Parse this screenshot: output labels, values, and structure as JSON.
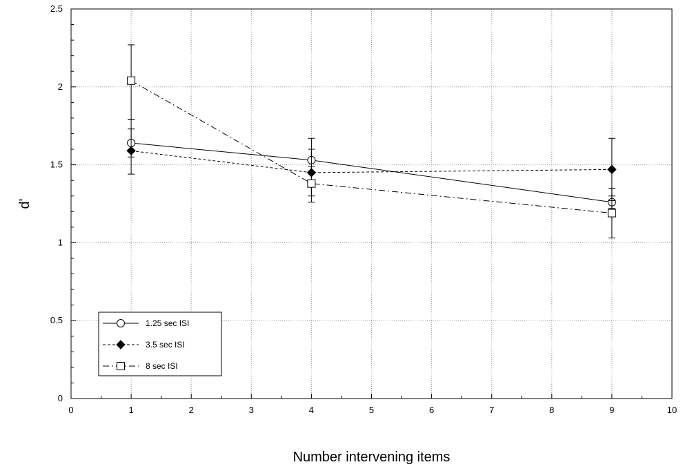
{
  "chart_data": {
    "type": "line",
    "title": "",
    "xlabel": "Number intervening items",
    "ylabel": "d'",
    "xlim": [
      0,
      10
    ],
    "ylim": [
      0,
      2.5
    ],
    "x_ticks": [
      "0",
      "1",
      "2",
      "3",
      "4",
      "5",
      "6",
      "7",
      "8",
      "9",
      "10"
    ],
    "y_ticks": [
      "0",
      "0.5",
      "1",
      "1.5",
      "2",
      "2.5"
    ],
    "grid": "dotted",
    "legend_position": "bottom-left",
    "x": [
      1,
      4,
      9
    ],
    "series": [
      {
        "name": "1.25 sec ISI",
        "marker": "open-circle",
        "line_style": "solid",
        "values": [
          1.64,
          1.53,
          1.26
        ],
        "err_upper": [
          1.73,
          1.67,
          1.3
        ],
        "err_lower": [
          1.55,
          1.39,
          1.22
        ]
      },
      {
        "name": "3.5 sec ISI",
        "marker": "filled-diamond",
        "line_style": "dashed",
        "values": [
          1.59,
          1.45,
          1.47
        ],
        "err_upper": [
          1.79,
          1.6,
          1.67
        ],
        "err_lower": [
          1.44,
          1.3,
          1.27
        ]
      },
      {
        "name": "8 sec ISI",
        "marker": "open-square",
        "line_style": "dash-dot",
        "values": [
          2.04,
          1.38,
          1.19
        ],
        "err_upper": [
          2.27,
          1.49,
          1.35
        ],
        "err_lower": [
          1.79,
          1.26,
          1.03
        ]
      }
    ]
  }
}
